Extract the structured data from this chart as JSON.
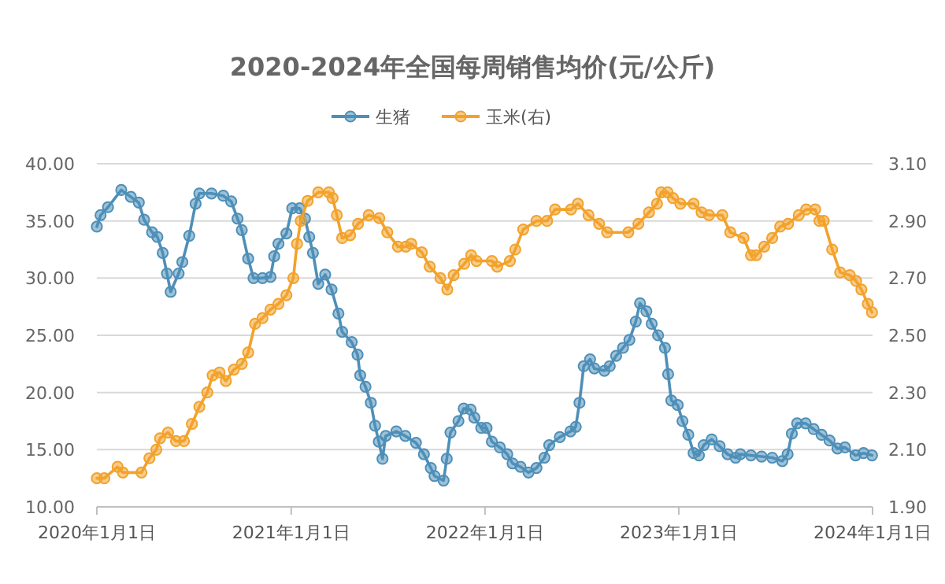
{
  "chart_data": {
    "type": "line",
    "title": "2020-2024年全国每周销售均价(元/公斤)",
    "legend": "top",
    "marker": "circle",
    "grid": "y",
    "xlim": [
      "2020-01-01",
      "2024-01-01"
    ],
    "xticks": [
      {
        "value": "2020-01-01",
        "label": "2020年1月1日"
      },
      {
        "value": "2021-01-01",
        "label": "2021年1月1日"
      },
      {
        "value": "2022-01-01",
        "label": "2022年1月1日"
      },
      {
        "value": "2023-01-01",
        "label": "2023年1月1日"
      },
      {
        "value": "2024-01-01",
        "label": "2024年1月1日"
      }
    ],
    "ylim": [
      10,
      40
    ],
    "yticks": [
      {
        "value": 10,
        "label": "10.00"
      },
      {
        "value": 15,
        "label": "15.00"
      },
      {
        "value": 20,
        "label": "20.00"
      },
      {
        "value": 25,
        "label": "25.00"
      },
      {
        "value": 30,
        "label": "30.00"
      },
      {
        "value": 35,
        "label": "35.00"
      },
      {
        "value": 40,
        "label": "40.00"
      }
    ],
    "y2lim": [
      1.9,
      3.1
    ],
    "y2ticks": [
      {
        "value": 1.9,
        "label": "1.90"
      },
      {
        "value": 2.1,
        "label": "2.10"
      },
      {
        "value": 2.3,
        "label": "2.30"
      },
      {
        "value": 2.5,
        "label": "2.50"
      },
      {
        "value": 2.7,
        "label": "2.70"
      },
      {
        "value": 2.9,
        "label": "2.90"
      },
      {
        "value": 3.1,
        "label": "3.10"
      }
    ],
    "series": [
      {
        "name": "生猪",
        "color": "#4e8fb8",
        "x": [
          "2020-01-01",
          "2020-01-08",
          "2020-01-22",
          "2020-02-16",
          "2020-03-05",
          "2020-03-20",
          "2020-03-30",
          "2020-04-14",
          "2020-04-24",
          "2020-05-04",
          "2020-05-12",
          "2020-05-19",
          "2020-06-03",
          "2020-06-10",
          "2020-06-23",
          "2020-07-05",
          "2020-07-12",
          "2020-08-04",
          "2020-08-26",
          "2020-09-10",
          "2020-09-22",
          "2020-09-30",
          "2020-10-12",
          "2020-10-22",
          "2020-11-08",
          "2020-11-23",
          "2020-11-30",
          "2020-12-08",
          "2020-12-23",
          "2021-01-03",
          "2021-01-17",
          "2021-01-27",
          "2021-02-04",
          "2021-02-11",
          "2021-02-21",
          "2021-03-06",
          "2021-03-18",
          "2021-03-31",
          "2021-04-07",
          "2021-04-25",
          "2021-05-06",
          "2021-05-11",
          "2021-05-21",
          "2021-05-31",
          "2021-06-08",
          "2021-06-15",
          "2021-06-22",
          "2021-06-28",
          "2021-07-18",
          "2021-08-04",
          "2021-08-24",
          "2021-09-08",
          "2021-09-21",
          "2021-09-28",
          "2021-10-15",
          "2021-10-21",
          "2021-10-28",
          "2021-11-12",
          "2021-11-22",
          "2021-12-05",
          "2021-12-12",
          "2021-12-25",
          "2022-01-04",
          "2022-01-14",
          "2022-01-29",
          "2022-02-12",
          "2022-02-22",
          "2022-03-09",
          "2022-03-24",
          "2022-04-08",
          "2022-04-23",
          "2022-05-02",
          "2022-05-22",
          "2022-06-11",
          "2022-06-21",
          "2022-06-28",
          "2022-07-06",
          "2022-07-18",
          "2022-07-26",
          "2022-08-14",
          "2022-08-24",
          "2022-09-05",
          "2022-09-18",
          "2022-09-30",
          "2022-10-12",
          "2022-10-20",
          "2022-11-01",
          "2022-11-11",
          "2022-11-23",
          "2022-12-06",
          "2022-12-12",
          "2022-12-18",
          "2022-12-30",
          "2023-01-08",
          "2023-01-19",
          "2023-01-29",
          "2023-02-08",
          "2023-02-17",
          "2023-03-04",
          "2023-03-19",
          "2023-04-03",
          "2023-04-18",
          "2023-04-27",
          "2023-05-17",
          "2023-06-06",
          "2023-06-26",
          "2023-07-15",
          "2023-07-25",
          "2023-08-02",
          "2023-08-12",
          "2023-08-28",
          "2023-09-12",
          "2023-09-27",
          "2023-10-12",
          "2023-10-27",
          "2023-11-10",
          "2023-11-30",
          "2023-12-15",
          "2023-12-31"
        ],
        "values": [
          34.5,
          35.5,
          36.2,
          37.7,
          37.1,
          36.6,
          35.1,
          34.0,
          33.6,
          32.2,
          30.4,
          28.8,
          30.4,
          31.4,
          33.7,
          36.5,
          37.4,
          37.4,
          37.2,
          36.7,
          35.2,
          34.2,
          31.7,
          30.0,
          30.0,
          30.1,
          31.9,
          33.0,
          33.9,
          36.1,
          36.1,
          35.2,
          33.6,
          32.2,
          29.5,
          30.3,
          29.0,
          26.9,
          25.3,
          24.4,
          23.3,
          21.5,
          20.5,
          19.1,
          17.1,
          15.7,
          14.2,
          16.2,
          16.6,
          16.2,
          15.6,
          14.6,
          13.4,
          12.7,
          12.3,
          14.2,
          16.5,
          17.5,
          18.6,
          18.5,
          17.8,
          16.9,
          16.9,
          15.7,
          15.2,
          14.6,
          13.8,
          13.5,
          13.0,
          13.4,
          14.3,
          15.4,
          16.1,
          16.6,
          17.0,
          19.1,
          22.3,
          22.9,
          22.1,
          21.9,
          22.3,
          23.2,
          23.9,
          24.6,
          26.2,
          27.8,
          27.1,
          26.0,
          25.0,
          23.9,
          21.6,
          19.3,
          18.9,
          17.5,
          16.3,
          14.7,
          14.5,
          15.4,
          15.9,
          15.3,
          14.6,
          14.3,
          14.6,
          14.5,
          14.4,
          14.3,
          14.0,
          14.6,
          16.4,
          17.3,
          17.3,
          16.8,
          16.3,
          15.8,
          15.1,
          15.2,
          14.5,
          14.7,
          14.5
        ]
      },
      {
        "name": "玉米(右)",
        "color": "#f2a22c",
        "axis": "y2",
        "x": [
          "2020-01-01",
          "2020-01-15",
          "2020-02-09",
          "2020-02-19",
          "2020-03-25",
          "2020-04-09",
          "2020-04-22",
          "2020-04-29",
          "2020-05-14",
          "2020-05-29",
          "2020-06-13",
          "2020-06-28",
          "2020-07-12",
          "2020-07-27",
          "2020-08-06",
          "2020-08-19",
          "2020-08-31",
          "2020-09-15",
          "2020-09-30",
          "2020-10-12",
          "2020-10-25",
          "2020-11-08",
          "2020-11-23",
          "2020-12-08",
          "2020-12-23",
          "2021-01-05",
          "2021-01-12",
          "2021-01-19",
          "2021-02-01",
          "2021-02-21",
          "2021-03-13",
          "2021-03-20",
          "2021-03-28",
          "2021-04-07",
          "2021-04-22",
          "2021-05-07",
          "2021-05-27",
          "2021-06-16",
          "2021-07-01",
          "2021-07-21",
          "2021-08-05",
          "2021-08-15",
          "2021-09-04",
          "2021-09-19",
          "2021-10-09",
          "2021-10-22",
          "2021-11-03",
          "2021-11-23",
          "2021-12-06",
          "2021-12-16",
          "2022-01-14",
          "2022-01-24",
          "2022-02-17",
          "2022-02-27",
          "2022-03-14",
          "2022-04-08",
          "2022-04-28",
          "2022-05-13",
          "2022-06-12",
          "2022-06-25",
          "2022-07-15",
          "2022-08-04",
          "2022-08-19",
          "2022-09-28",
          "2022-10-17",
          "2022-11-06",
          "2022-11-21",
          "2022-11-29",
          "2022-12-11",
          "2022-12-21",
          "2023-01-04",
          "2023-01-29",
          "2023-02-13",
          "2023-02-27",
          "2023-03-24",
          "2023-04-08",
          "2023-05-03",
          "2023-05-17",
          "2023-05-27",
          "2023-06-11",
          "2023-06-26",
          "2023-07-11",
          "2023-07-26",
          "2023-08-15",
          "2023-08-29",
          "2023-09-15",
          "2023-09-23",
          "2023-10-01",
          "2023-10-17",
          "2023-11-01",
          "2023-11-19",
          "2023-12-01",
          "2023-12-11",
          "2023-12-23",
          "2023-12-31"
        ],
        "values": [
          2.0,
          2.0,
          2.04,
          2.02,
          2.02,
          2.07,
          2.1,
          2.14,
          2.16,
          2.13,
          2.13,
          2.19,
          2.25,
          2.3,
          2.36,
          2.37,
          2.34,
          2.38,
          2.4,
          2.44,
          2.54,
          2.56,
          2.59,
          2.61,
          2.64,
          2.7,
          2.82,
          2.9,
          2.97,
          3.0,
          3.0,
          2.98,
          2.92,
          2.84,
          2.85,
          2.89,
          2.92,
          2.91,
          2.86,
          2.81,
          2.81,
          2.82,
          2.79,
          2.74,
          2.7,
          2.66,
          2.71,
          2.75,
          2.78,
          2.76,
          2.76,
          2.74,
          2.76,
          2.8,
          2.87,
          2.9,
          2.9,
          2.94,
          2.94,
          2.96,
          2.92,
          2.89,
          2.86,
          2.86,
          2.89,
          2.93,
          2.96,
          3.0,
          3.0,
          2.98,
          2.96,
          2.96,
          2.93,
          2.92,
          2.92,
          2.86,
          2.84,
          2.78,
          2.78,
          2.81,
          2.84,
          2.88,
          2.89,
          2.92,
          2.94,
          2.94,
          2.9,
          2.9,
          2.8,
          2.72,
          2.71,
          2.69,
          2.66,
          2.61,
          2.58
        ]
      }
    ]
  }
}
